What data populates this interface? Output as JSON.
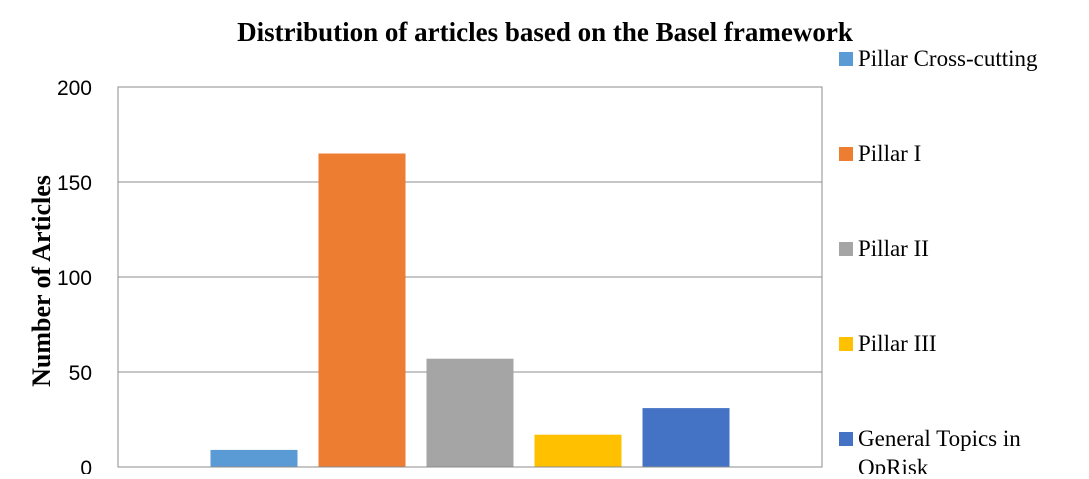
{
  "chart_data": {
    "type": "bar",
    "title": "Distribution of articles based on the Basel framework",
    "xlabel": "",
    "ylabel": "Number of Articles",
    "ylim": [
      0,
      200
    ],
    "yticks": [
      0,
      50,
      100,
      150,
      200
    ],
    "grid": true,
    "legend_position": "right",
    "categories": [
      "Pillar Cross-cutting",
      "Pillar I",
      "Pillar II",
      "Pillar III",
      "General Topics in OpRisk"
    ],
    "legend_lines": [
      [
        "Pillar Cross-cutting"
      ],
      [
        "Pillar I"
      ],
      [
        "Pillar II"
      ],
      [
        "Pillar III"
      ],
      [
        "General Topics in",
        "OpRisk"
      ]
    ],
    "values": [
      9,
      165,
      57,
      17,
      31
    ],
    "colors": [
      "#5b9bd5",
      "#ed7d31",
      "#a5a5a5",
      "#ffc000",
      "#4472c4"
    ]
  }
}
